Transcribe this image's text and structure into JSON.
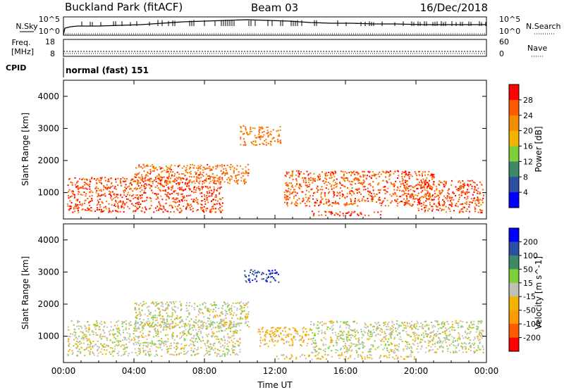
{
  "header": {
    "station": "Buckland Park (fitACF)",
    "beam": "Beam 03",
    "date": "16/Dec/2018"
  },
  "noise_panel": {
    "left_label": "N.Sky",
    "right_label": "N.Search",
    "left_ticks": [
      "10^5",
      "10^0"
    ],
    "right_ticks": [
      "10^5",
      "10^0"
    ]
  },
  "freq_panel": {
    "left_label_1": "Freq.",
    "left_label_2": "[MHz]",
    "right_label": "Nave",
    "left_ticks": [
      "18",
      "8"
    ],
    "right_ticks": [
      "60",
      "0"
    ]
  },
  "cpid_panel": {
    "label": "CPID",
    "value": "normal (fast) 151"
  },
  "chart_data": [
    {
      "type": "heatmap",
      "title": "",
      "xlabel": "",
      "ylabel": "Slant Range [km]",
      "x_ticks": [
        "00:00",
        "04:00",
        "08:00",
        "12:00",
        "16:00",
        "20:00",
        "00:00"
      ],
      "y_ticks": [
        1000,
        2000,
        3000,
        4000
      ],
      "xlim_hours": [
        0,
        24
      ],
      "ylim_km": [
        180,
        4500
      ],
      "colorbar": {
        "label": "Power [dB]",
        "ticks": [
          "4",
          "8",
          "12",
          "16",
          "20",
          "24",
          "28"
        ],
        "range": [
          0,
          32
        ],
        "colors": [
          "#0000ff",
          "#2c4fa3",
          "#3c8a66",
          "#7fcf3a",
          "#f2b400",
          "#f28c00",
          "#ff5a00",
          "#ff0000"
        ]
      },
      "echo_regions": [
        {
          "t0": 0.2,
          "t1": 9.0,
          "r0": 400,
          "r1": 1500,
          "value": 27
        },
        {
          "t0": 4.0,
          "t1": 10.5,
          "r0": 1300,
          "r1": 1900,
          "value": 25
        },
        {
          "t0": 10.0,
          "t1": 12.3,
          "r0": 2500,
          "r1": 3100,
          "value": 24
        },
        {
          "t0": 12.5,
          "t1": 21.0,
          "r0": 600,
          "r1": 1700,
          "value": 26
        },
        {
          "t0": 20.0,
          "t1": 23.8,
          "r0": 400,
          "r1": 1400,
          "value": 27
        },
        {
          "t0": 14.0,
          "t1": 18.0,
          "r0": 300,
          "r1": 450,
          "value": 28
        }
      ]
    },
    {
      "type": "heatmap",
      "title": "",
      "xlabel": "Time UT",
      "ylabel": "Slant Range [km]",
      "x_ticks": [
        "00:00",
        "04:00",
        "08:00",
        "12:00",
        "16:00",
        "20:00",
        "00:00"
      ],
      "y_ticks": [
        1000,
        2000,
        3000,
        4000
      ],
      "xlim_hours": [
        0,
        24
      ],
      "ylim_km": [
        180,
        4500
      ],
      "colorbar": {
        "label": "Velocity [m s^-1]",
        "ticks": [
          "200",
          "100",
          "50",
          "15",
          "-15",
          "-50",
          "-100",
          "-200"
        ],
        "range": [
          -250,
          250
        ],
        "colors": [
          "#ff0000",
          "#ff5a00",
          "#ff9a00",
          "#f2b400",
          "#c0c0b8",
          "#7fcf3a",
          "#3c8a66",
          "#2c4fa3",
          "#0000ff"
        ]
      },
      "echo_regions": [
        {
          "t0": 0.2,
          "t1": 10.0,
          "r0": 400,
          "r1": 1500,
          "value": 0
        },
        {
          "t0": 4.0,
          "t1": 10.5,
          "r0": 1300,
          "r1": 2100,
          "value": 0
        },
        {
          "t0": 10.2,
          "t1": 12.2,
          "r0": 2700,
          "r1": 3100,
          "value": 180
        },
        {
          "t0": 11.0,
          "t1": 14.0,
          "r0": 700,
          "r1": 1300,
          "value": -60
        },
        {
          "t0": 14.0,
          "t1": 23.8,
          "r0": 500,
          "r1": 1500,
          "value": 0
        },
        {
          "t0": 12.0,
          "t1": 20.0,
          "r0": 300,
          "r1": 450,
          "value": -40
        }
      ]
    }
  ]
}
